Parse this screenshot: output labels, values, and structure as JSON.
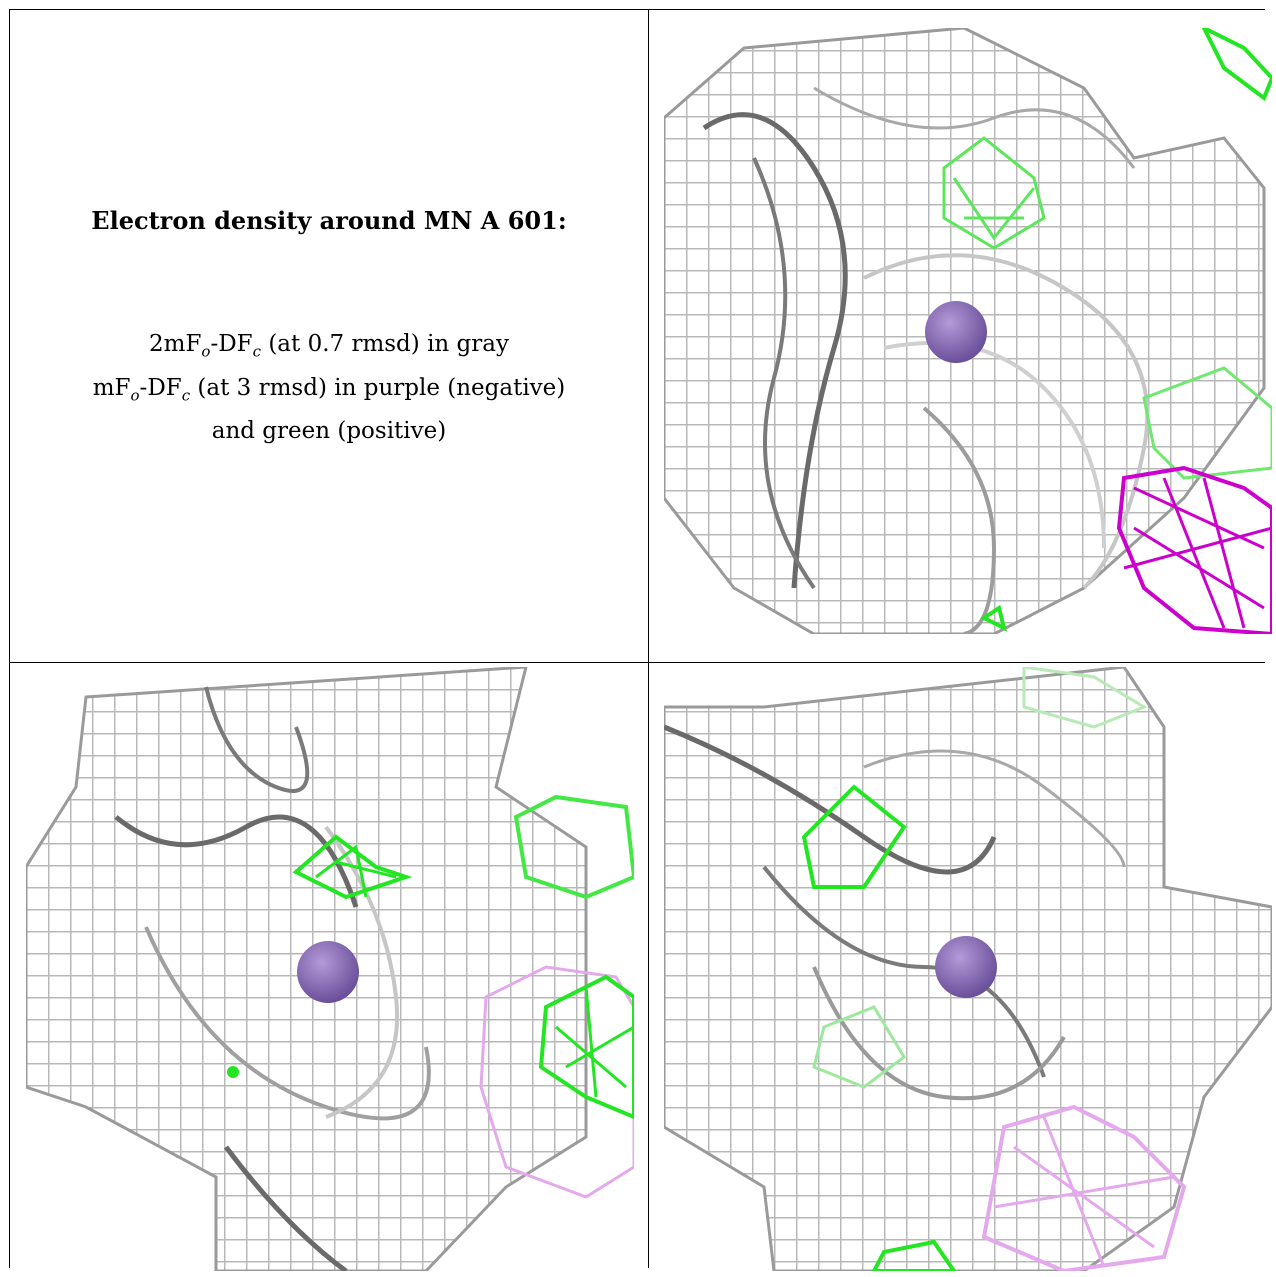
{
  "title": "Electron density around MN A 601:",
  "legend": {
    "line1": {
      "pre": "2mF",
      "s1": "o",
      "mid": "-DF",
      "s2": "c",
      "post": " (at 0.7 rmsd) in gray"
    },
    "line2": {
      "pre": "mF",
      "s1": "o",
      "mid": "-DF",
      "s2": "c",
      "post": " (at 3 rmsd) in purple (negative)"
    },
    "line3": "and green (positive)"
  },
  "colors": {
    "mesh_gray": "#b4b4b4",
    "mesh_dark": "#6a6a6a",
    "positive_green": "#22e622",
    "negative_purple": "#cc00cc",
    "atom_purple": "#8a6ab8"
  },
  "views": [
    "view-1",
    "view-2",
    "view-3"
  ]
}
